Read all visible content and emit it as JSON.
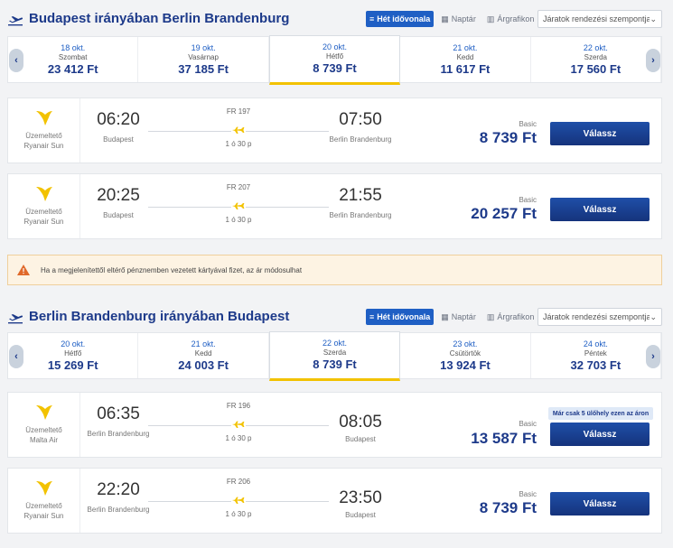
{
  "outbound": {
    "title": "Budapest irányában Berlin Brandenburg",
    "views": {
      "timeline": "Hét idővonala",
      "calendar": "Naptár",
      "chart": "Árgrafikon"
    },
    "sort_placeholder": "Járatok rendezési szempontja:",
    "dates": [
      {
        "date": "18 okt.",
        "weekday": "Szombat",
        "price": "23 412 Ft"
      },
      {
        "date": "19 okt.",
        "weekday": "Vasárnap",
        "price": "37 185 Ft"
      },
      {
        "date": "20 okt.",
        "weekday": "Hétfő",
        "price": "8 739 Ft"
      },
      {
        "date": "21 okt.",
        "weekday": "Kedd",
        "price": "11 617 Ft"
      },
      {
        "date": "22 okt.",
        "weekday": "Szerda",
        "price": "17 560 Ft"
      }
    ],
    "flights": [
      {
        "operator_label": "Üzemeltető",
        "airline": "Ryanair Sun",
        "dep_time": "06:20",
        "dep_city": "Budapest",
        "flight_no": "FR 197",
        "duration": "1 ó 30 p",
        "arr_time": "07:50",
        "arr_city": "Berlin Brandenburg",
        "fare_class": "Basic",
        "price": "8 739 Ft",
        "select_label": "Válassz"
      },
      {
        "operator_label": "Üzemeltető",
        "airline": "Ryanair Sun",
        "dep_time": "20:25",
        "dep_city": "Budapest",
        "flight_no": "FR 207",
        "duration": "1 ó 30 p",
        "arr_time": "21:55",
        "arr_city": "Berlin Brandenburg",
        "fare_class": "Basic",
        "price": "20 257 Ft",
        "select_label": "Válassz"
      }
    ]
  },
  "warning": "Ha a megjelenítettől eltérő pénznemben vezetett kártyával fizet, az ár módosulhat",
  "inbound": {
    "title": "Berlin Brandenburg irányában Budapest",
    "views": {
      "timeline": "Hét idővonala",
      "calendar": "Naptár",
      "chart": "Árgrafikon"
    },
    "sort_placeholder": "Járatok rendezési szempontja:",
    "dates": [
      {
        "date": "20 okt.",
        "weekday": "Hétfő",
        "price": "15 269 Ft"
      },
      {
        "date": "21 okt.",
        "weekday": "Kedd",
        "price": "24 003 Ft"
      },
      {
        "date": "22 okt.",
        "weekday": "Szerda",
        "price": "8 739 Ft"
      },
      {
        "date": "23 okt.",
        "weekday": "Csütörtök",
        "price": "13 924 Ft"
      },
      {
        "date": "24 okt.",
        "weekday": "Péntek",
        "price": "32 703 Ft"
      }
    ],
    "flights": [
      {
        "operator_label": "Üzemeltető",
        "airline": "Malta Air",
        "dep_time": "06:35",
        "dep_city": "Berlin Brandenburg",
        "flight_no": "FR 196",
        "duration": "1 ó 30 p",
        "arr_time": "08:05",
        "arr_city": "Budapest",
        "fare_class": "Basic",
        "price": "13 587 Ft",
        "select_label": "Válassz",
        "seats_note": "Már csak 5 ülőhely ezen az áron"
      },
      {
        "operator_label": "Üzemeltető",
        "airline": "Ryanair Sun",
        "dep_time": "22:20",
        "dep_city": "Berlin Brandenburg",
        "flight_no": "FR 206",
        "duration": "1 ó 30 p",
        "arr_time": "23:50",
        "arr_city": "Budapest",
        "fare_class": "Basic",
        "price": "8 739 Ft",
        "select_label": "Válassz"
      }
    ]
  },
  "colors": {
    "brand_blue": "#1d3a8a",
    "button_blue": "#173a8c",
    "highlight_yellow": "#f2c200",
    "warning_bg": "#fdf3e3"
  }
}
